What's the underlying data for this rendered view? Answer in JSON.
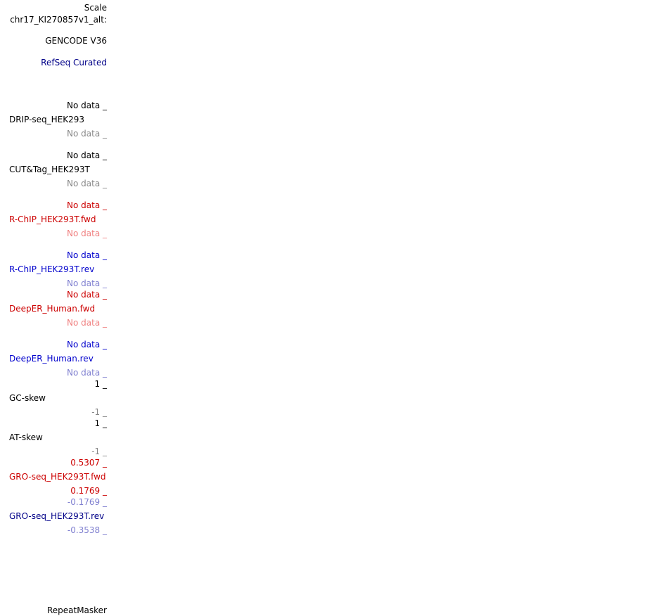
{
  "colors": {
    "black": "#000000",
    "gray": "#888888",
    "navy": "#000088",
    "red": "#cc0000",
    "light_red": "#f08080",
    "blue": "#0000cc",
    "light_blue": "#8080d0"
  },
  "header": {
    "scale_label": "Scale",
    "chrom_label": "chr17_KI270857v1_alt:"
  },
  "tracks": {
    "gencode": {
      "label": "GENCODE V36"
    },
    "refseq": {
      "label": "RefSeq Curated"
    },
    "drip": {
      "top": "No data _",
      "name": "DRIP-seq_HEK293",
      "bottom": "No data _"
    },
    "cuttag": {
      "top": "No data _",
      "name": "CUT&Tag_HEK293T",
      "bottom": "No data _"
    },
    "rchip_fwd": {
      "top": "No data _",
      "name": "R-ChIP_HEK293T.fwd",
      "bottom": "No data _"
    },
    "rchip_rev": {
      "top": "No data _",
      "name": "R-ChIP_HEK293T.rev",
      "bottom": "No data _"
    },
    "deeper_fwd": {
      "top": "No data _",
      "name": "DeepER_Human.fwd",
      "bottom": "No data _"
    },
    "deeper_rev": {
      "top": "No data _",
      "name": "DeepER_Human.rev",
      "bottom": "No data _"
    },
    "gc_skew": {
      "top": "1 _",
      "name": "GC-skew",
      "bottom": "-1 _"
    },
    "at_skew": {
      "top": "1 _",
      "name": "AT-skew",
      "bottom": "-1 _"
    },
    "gro_fwd": {
      "top": "0.5307 _",
      "name": "GRO-seq_HEK293T.fwd",
      "bottom": "0.1769 _"
    },
    "gro_rev": {
      "top": "-0.1769 _",
      "name": "GRO-seq_HEK293T.rev",
      "bottom": "-0.3538 _"
    },
    "repeatmasker": {
      "label": "RepeatMasker"
    }
  }
}
